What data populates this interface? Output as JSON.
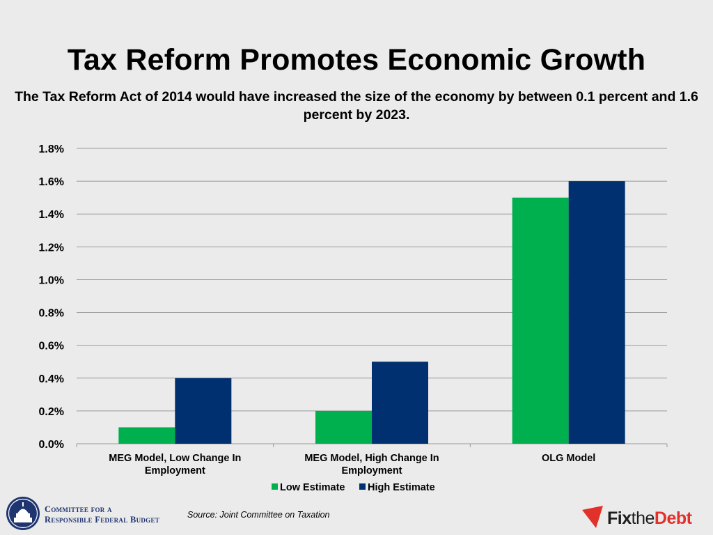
{
  "title": "Tax Reform Promotes Economic Growth",
  "subtitle": "The Tax Reform Act of 2014 would have increased the size of the economy by between 0.1 percent and 1.6 percent by 2023.",
  "source": "Source: Joint Committee on Taxation",
  "footer": {
    "crfb_line1": "Committee for a",
    "crfb_line2": "Responsible Federal Budget",
    "fix_part1": "Fix",
    "fix_part2": "the",
    "fix_part3": "Debt"
  },
  "colors": {
    "low": "#00b04f",
    "high": "#00306f",
    "grid": "#9a9a9a",
    "brand_blue": "#1f3570",
    "brand_red": "#e2312b"
  },
  "chart_data": {
    "type": "bar",
    "categories": [
      [
        "MEG Model, Low Change In",
        "Employment"
      ],
      [
        "MEG Model, High Change In",
        "Employment"
      ],
      [
        "OLG Model"
      ]
    ],
    "series": [
      {
        "name": "Low Estimate",
        "values": [
          0.1,
          0.2,
          1.5
        ],
        "color": "#00b04f"
      },
      {
        "name": "High Estimate",
        "values": [
          0.4,
          0.5,
          1.6
        ],
        "color": "#00306f"
      }
    ],
    "yticks": [
      "0.0%",
      "0.2%",
      "0.4%",
      "0.6%",
      "0.8%",
      "1.0%",
      "1.2%",
      "1.4%",
      "1.6%",
      "1.8%"
    ],
    "ylim": [
      0,
      1.8
    ],
    "grid": true,
    "legend_position": "bottom",
    "xlabel": "",
    "ylabel": ""
  }
}
